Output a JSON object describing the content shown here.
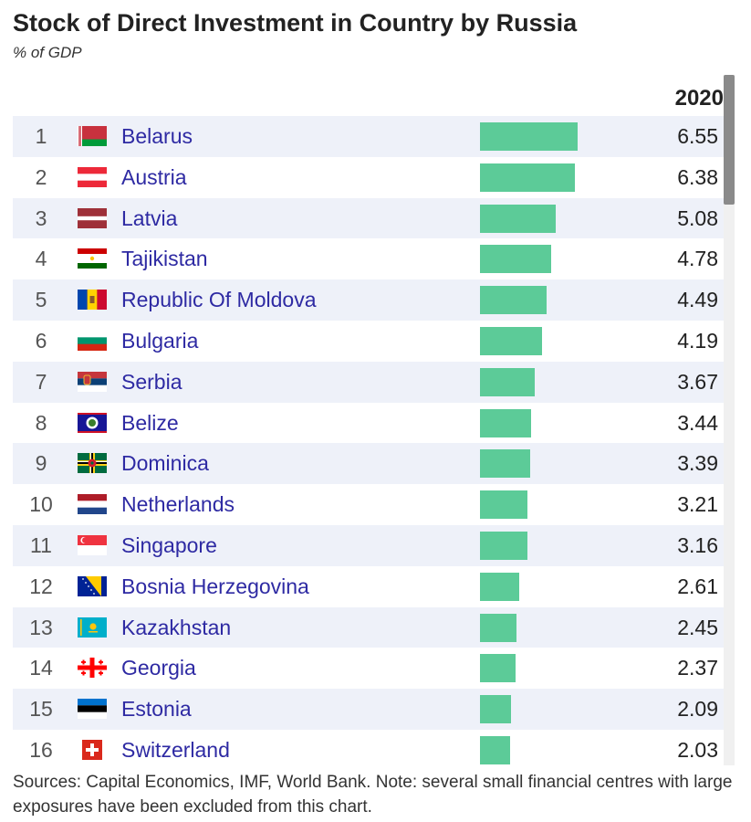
{
  "header": {
    "title": "Stock of Direct Investment in Country by Russia",
    "subtitle": "% of GDP"
  },
  "table": {
    "year_header": "2020",
    "rows": [
      {
        "rank": "1",
        "country": "Belarus",
        "value": "6.55"
      },
      {
        "rank": "2",
        "country": "Austria",
        "value": "6.38"
      },
      {
        "rank": "3",
        "country": "Latvia",
        "value": "5.08"
      },
      {
        "rank": "4",
        "country": "Tajikistan",
        "value": "4.78"
      },
      {
        "rank": "5",
        "country": "Republic Of Moldova",
        "value": "4.49"
      },
      {
        "rank": "6",
        "country": "Bulgaria",
        "value": "4.19"
      },
      {
        "rank": "7",
        "country": "Serbia",
        "value": "3.67"
      },
      {
        "rank": "8",
        "country": "Belize",
        "value": "3.44"
      },
      {
        "rank": "9",
        "country": "Dominica",
        "value": "3.39"
      },
      {
        "rank": "10",
        "country": "Netherlands",
        "value": "3.21"
      },
      {
        "rank": "11",
        "country": "Singapore",
        "value": "3.16"
      },
      {
        "rank": "12",
        "country": "Bosnia Herzegovina",
        "value": "2.61"
      },
      {
        "rank": "13",
        "country": "Kazakhstan",
        "value": "2.45"
      },
      {
        "rank": "14",
        "country": "Georgia",
        "value": "2.37"
      },
      {
        "rank": "15",
        "country": "Estonia",
        "value": "2.09"
      },
      {
        "rank": "16",
        "country": "Switzerland",
        "value": "2.03"
      }
    ]
  },
  "colors": {
    "bar": "#5ccb98",
    "country_link": "#2e2aa3",
    "row_stripe": "#eef1f9"
  },
  "flags": [
    "belarus-flag-icon",
    "austria-flag-icon",
    "latvia-flag-icon",
    "tajikistan-flag-icon",
    "moldova-flag-icon",
    "bulgaria-flag-icon",
    "serbia-flag-icon",
    "belize-flag-icon",
    "dominica-flag-icon",
    "netherlands-flag-icon",
    "singapore-flag-icon",
    "bosnia-flag-icon",
    "kazakhstan-flag-icon",
    "georgia-flag-icon",
    "estonia-flag-icon",
    "switzerland-flag-icon"
  ],
  "footer": {
    "note": "Sources: Capital Economics, IMF, World Bank. Note: several small financial centres with large exposures have been excluded from this chart."
  },
  "chart_data": {
    "type": "bar",
    "orientation": "horizontal",
    "title": "Stock of Direct Investment in Country by Russia",
    "subtitle": "% of GDP",
    "series": [
      {
        "name": "2020",
        "values": [
          6.55,
          6.38,
          5.08,
          4.78,
          4.49,
          4.19,
          3.67,
          3.44,
          3.39,
          3.21,
          3.16,
          2.61,
          2.45,
          2.37,
          2.09,
          2.03
        ]
      }
    ],
    "categories": [
      "Belarus",
      "Austria",
      "Latvia",
      "Tajikistan",
      "Republic Of Moldova",
      "Bulgaria",
      "Serbia",
      "Belize",
      "Dominica",
      "Netherlands",
      "Singapore",
      "Bosnia Herzegovina",
      "Kazakhstan",
      "Georgia",
      "Estonia",
      "Switzerland"
    ],
    "xlim": [
      0,
      6.55
    ]
  }
}
